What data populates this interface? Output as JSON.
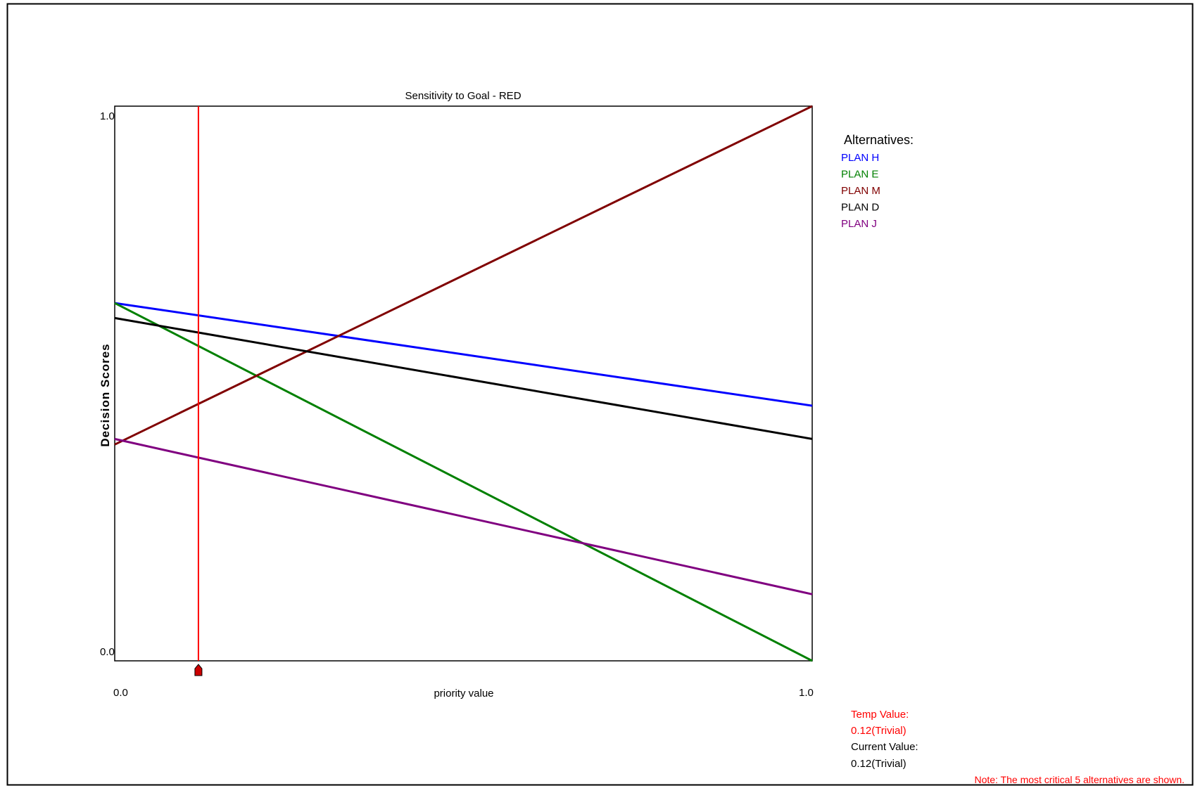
{
  "chart_data": {
    "type": "line",
    "title": "Sensitivity to Goal - RED",
    "xlabel": "priority value",
    "ylabel": "Decision Scores",
    "x_ticks": [
      "0.0",
      "1.0"
    ],
    "y_ticks": [
      "0.0",
      "1.0"
    ],
    "xlim": [
      0,
      1
    ],
    "ylim": [
      0,
      1
    ],
    "grid": false,
    "legend_title": "Alternatives:",
    "legend_position": "right",
    "series": [
      {
        "name": "PLAN H",
        "color": "#0000ff",
        "x": [
          0,
          1
        ],
        "values": [
          0.645,
          0.46
        ]
      },
      {
        "name": "PLAN E",
        "color": "#008000",
        "x": [
          0,
          1
        ],
        "values": [
          0.645,
          0.0
        ]
      },
      {
        "name": "PLAN M",
        "color": "#800000",
        "x": [
          0,
          1
        ],
        "values": [
          0.39,
          1.0
        ]
      },
      {
        "name": "PLAN D",
        "color": "#000000",
        "x": [
          0,
          1
        ],
        "values": [
          0.618,
          0.4
        ]
      },
      {
        "name": "PLAN J",
        "color": "#800080",
        "x": [
          0,
          1
        ],
        "values": [
          0.4,
          0.12
        ]
      }
    ],
    "marker": {
      "x": 0.12,
      "color": "#ff0000"
    }
  },
  "info": {
    "temp_label": "Temp Value:",
    "temp_value": "0.12(Trivial)",
    "current_label": "Current Value:",
    "current_value": "0.12(Trivial)",
    "note": "Note: The most critical 5 alternatives are shown.",
    "temp_color": "#ff0000",
    "current_color": "#000000",
    "note_color": "#ff0000"
  }
}
